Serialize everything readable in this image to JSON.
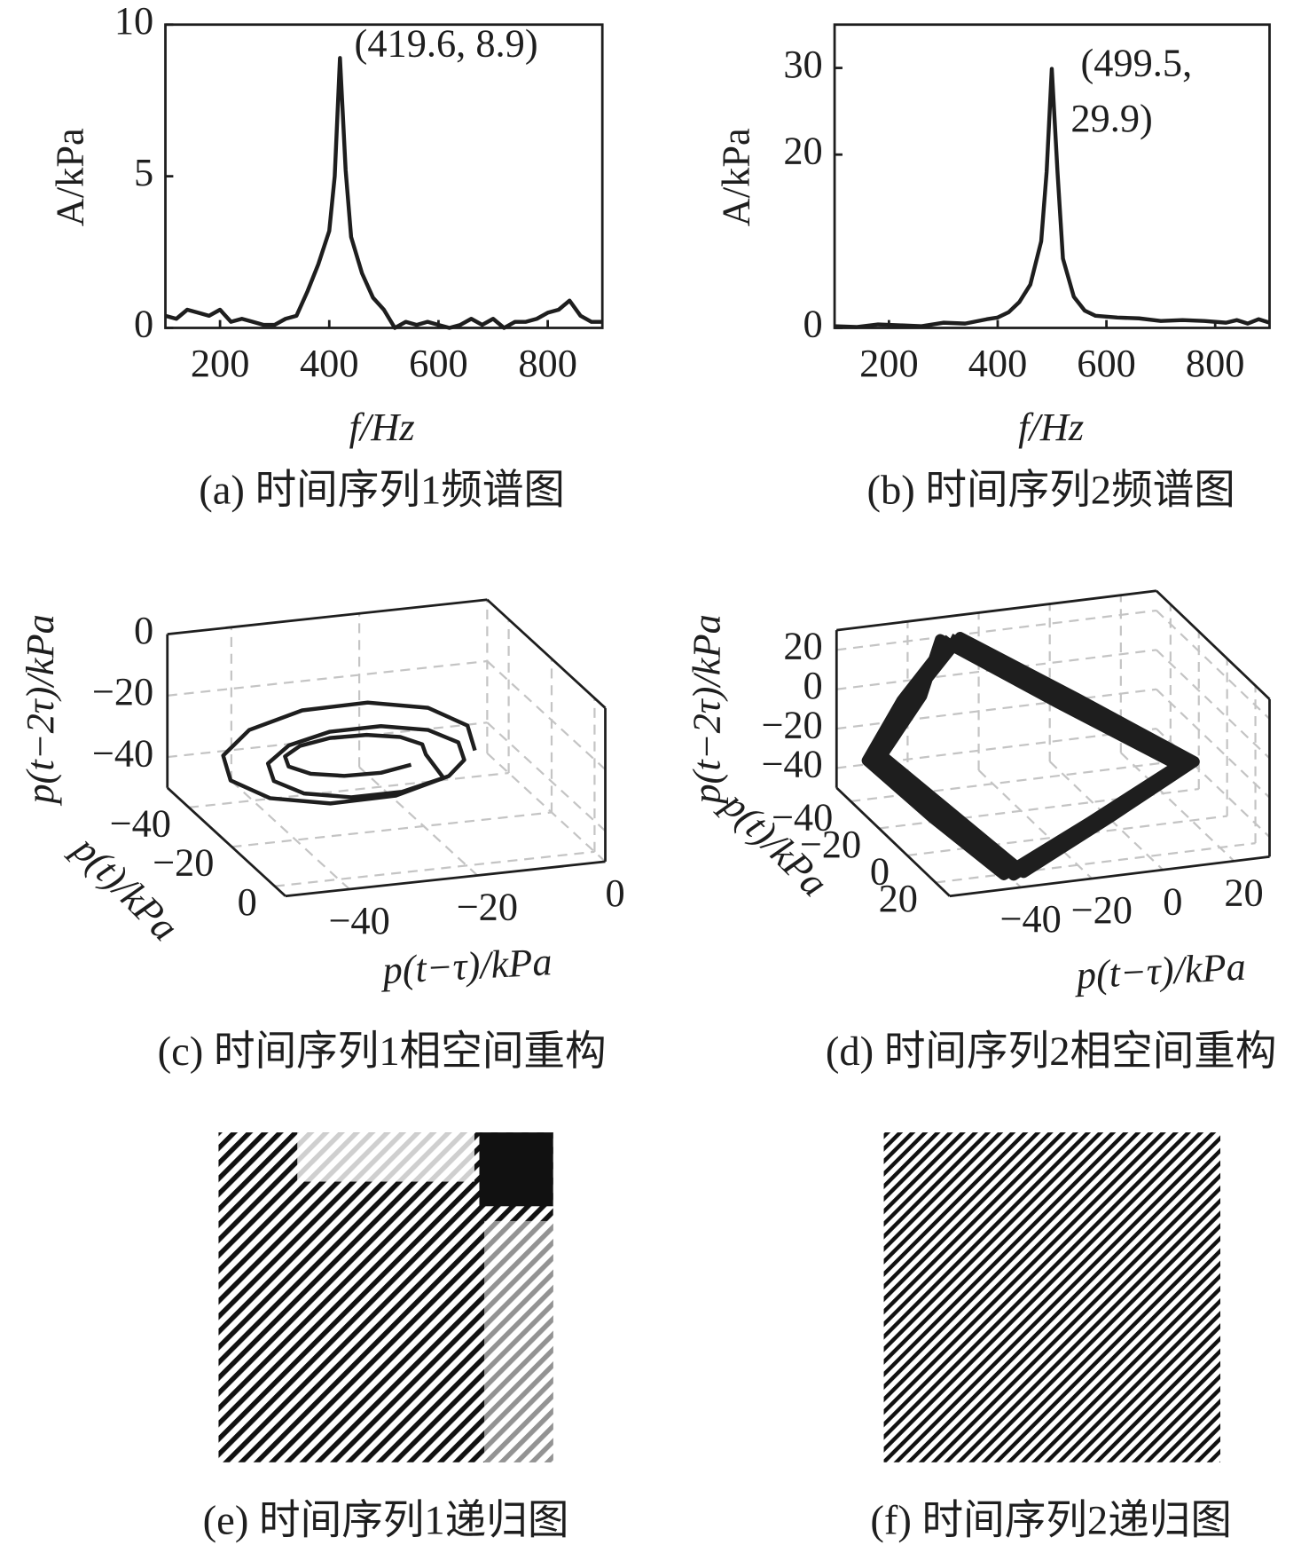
{
  "chart_data": [
    {
      "type": "line",
      "caption": "(a) 时间序列1频谱图",
      "xlabel": "f/Hz",
      "ylabel": "A/kPa",
      "annotation": "(419.6, 8.9)",
      "color": "#1e1e1e",
      "xlim": [
        100,
        900
      ],
      "ylim": [
        0,
        10
      ],
      "xticks": [
        200,
        400,
        600,
        800
      ],
      "yticks": [
        0,
        5,
        10
      ],
      "x": [
        100,
        120,
        140,
        160,
        180,
        200,
        220,
        240,
        260,
        280,
        300,
        320,
        340,
        360,
        380,
        400,
        410,
        419.6,
        430,
        440,
        460,
        480,
        500,
        520,
        540,
        560,
        580,
        600,
        620,
        640,
        660,
        680,
        700,
        720,
        740,
        760,
        780,
        800,
        820,
        840,
        860,
        880,
        900
      ],
      "values": [
        0.4,
        0.3,
        0.6,
        0.5,
        0.4,
        0.6,
        0.2,
        0.3,
        0.2,
        0.1,
        0.1,
        0.3,
        0.4,
        1.2,
        2.1,
        3.2,
        5,
        8.9,
        5.2,
        3,
        1.8,
        1,
        0.6,
        0,
        0.2,
        0.1,
        0.2,
        0.1,
        0,
        0.1,
        0.3,
        0.1,
        0.3,
        0,
        0.2,
        0.2,
        0.3,
        0.5,
        0.6,
        0.9,
        0.4,
        0.2,
        0.2
      ]
    },
    {
      "type": "line",
      "caption": "(b) 时间序列2频谱图",
      "xlabel": "f/Hz",
      "ylabel": "A/kPa",
      "annotation": [
        "(499.5,",
        "29.9)"
      ],
      "color": "#1e1e1e",
      "xlim": [
        100,
        900
      ],
      "ylim": [
        0,
        35
      ],
      "xticks": [
        200,
        400,
        600,
        800
      ],
      "yticks": [
        0,
        20,
        30
      ],
      "x": [
        100,
        140,
        180,
        220,
        260,
        300,
        340,
        380,
        400,
        420,
        440,
        460,
        480,
        490,
        499.5,
        510,
        520,
        540,
        560,
        580,
        600,
        620,
        660,
        700,
        740,
        780,
        820,
        840,
        860,
        880,
        900
      ],
      "values": [
        0.2,
        0.1,
        0.4,
        0.3,
        0.2,
        0.6,
        0.5,
        1,
        1.2,
        1.8,
        3,
        5,
        10,
        18,
        29.9,
        18,
        8,
        3.6,
        2,
        1.4,
        1.3,
        1.2,
        1.1,
        0.8,
        0.9,
        0.8,
        0.6,
        0.9,
        0.5,
        1,
        0.6
      ]
    },
    {
      "type": "phase3d",
      "caption": "(c) 时间序列1相空间重构",
      "xlabel": "p(t−τ)/kPa",
      "ylabel": "p(t)/kPa",
      "zlabel": "p(t−2τ)/kPa",
      "color": "#1e1e1e",
      "xlim": [
        -50,
        0
      ],
      "ylim": [
        -50,
        5
      ],
      "zlim": [
        -50,
        0
      ],
      "xticks": [
        {
          "value": -40,
          "label": "−40"
        },
        {
          "value": -20,
          "label": "−20"
        },
        0
      ],
      "yticks": [
        {
          "value": -40,
          "label": "−40"
        },
        {
          "value": -20,
          "label": "−20"
        },
        0
      ],
      "zticks": [
        {
          "value": -40,
          "label": "−40"
        },
        {
          "value": -20,
          "label": "−20"
        },
        0
      ],
      "x": [
        -13,
        -15.4,
        -22,
        -31,
        -40,
        -46.6,
        -49,
        -46.6,
        -40,
        -31,
        -22,
        -15.4,
        -15,
        -16.9,
        -22,
        -29,
        -36,
        -41.1,
        -43,
        -41.1,
        -36,
        -29,
        -22,
        -16.9,
        -20,
        -21.3,
        -25,
        -30,
        -35,
        -38.7,
        -40,
        -38.7,
        -35,
        -30,
        -25,
        -21.3
      ],
      "y": [
        -17,
        -13.3,
        -12,
        -13.3,
        -17,
        -22,
        -27,
        -30.7,
        -32,
        -30.7,
        -27,
        -22,
        -16,
        -13.1,
        -12,
        -13.1,
        -16,
        -20,
        -24,
        -26.9,
        -28,
        -26.9,
        -24,
        -20,
        -19,
        -16.8,
        -16,
        -16.8,
        -19,
        -22,
        -25,
        -27.2,
        -28,
        -27.2,
        -25,
        -22
      ],
      "z": [
        -25,
        -14,
        -5.9,
        -3,
        -5.9,
        -14,
        -25,
        -36,
        -44.1,
        -47,
        -44.1,
        -36,
        -27,
        -19,
        -13.1,
        -11,
        -13.1,
        -19,
        -27,
        -35,
        -40.9,
        -43,
        -40.9,
        -35,
        -26,
        -21,
        -17.3,
        -16,
        -17.3,
        -21,
        -26,
        -31,
        -34.7,
        -36,
        -34.7,
        -31
      ]
    },
    {
      "type": "phase3d",
      "caption": "(d) 时间序列2相空间重构",
      "xlabel": "p(t−τ)/kPa",
      "ylabel": "p(t)/kPa",
      "zlabel": "p(t−2τ)/kPa",
      "color": "#1e1e1e",
      "xlim": [
        -60,
        30
      ],
      "ylim": [
        -50,
        30
      ],
      "zlim": [
        -50,
        30
      ],
      "xticks": [
        {
          "value": -40,
          "label": "−40"
        },
        {
          "value": -20,
          "label": "−20"
        },
        0,
        20
      ],
      "yticks": [
        {
          "value": -40,
          "label": "−40"
        },
        {
          "value": -20,
          "label": "−20"
        },
        0,
        20
      ],
      "zticks": [
        {
          "value": -40,
          "label": "−40"
        },
        {
          "value": -20,
          "label": "−20"
        },
        0,
        20
      ],
      "x": [
        -32,
        -9,
        14.5,
        -13,
        -40,
        -46,
        -52,
        -42,
        -30,
        -7,
        16,
        -11,
        -38,
        -44,
        -50,
        -40,
        -34,
        -11,
        13,
        -15,
        -42,
        -48,
        -53,
        -44,
        -32
      ],
      "y": [
        -40,
        -15,
        10,
        18,
        25,
        -10,
        -45,
        -42,
        -38,
        -13,
        12,
        20,
        27,
        -8,
        -43,
        -40,
        -42,
        -17,
        8,
        16,
        23,
        -12,
        -46,
        -44,
        -40
      ],
      "z": [
        26.5,
        7,
        -13,
        -30,
        -47.3,
        -40,
        -33,
        -3,
        28,
        9,
        -11,
        -28,
        -45,
        -38,
        -31,
        -1,
        25,
        5,
        -15,
        -32,
        -48,
        -42,
        -35,
        -5,
        26.5
      ]
    },
    {
      "type": "recurrence",
      "caption": "(e) 时间序列1递归图"
    },
    {
      "type": "recurrence",
      "caption": "(f) 时间序列2递归图"
    }
  ]
}
